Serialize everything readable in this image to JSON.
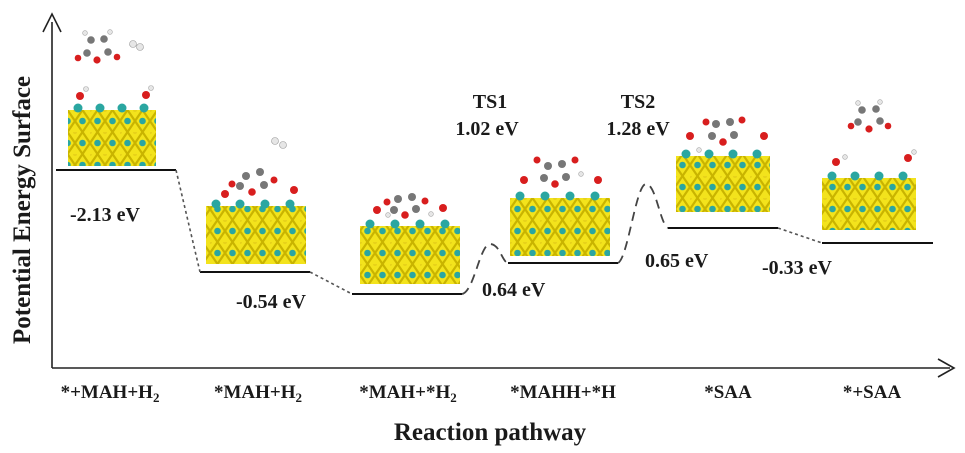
{
  "axes": {
    "ylabel": "Potential Energy Surface",
    "xlabel": "Reaction pathway"
  },
  "states": [
    {
      "label": "*+MAH+H2",
      "energy": "-2.13 eV"
    },
    {
      "label": "*MAH+H2",
      "energy": "-0.54 eV"
    },
    {
      "label": "*MAH+*H2",
      "energy": ""
    },
    {
      "label": "*MAHH+*H",
      "energy": "0.64 eV"
    },
    {
      "label": "*SAA",
      "energy": "0.65 eV"
    },
    {
      "label": "*+SAA",
      "energy": "-0.33 eV"
    }
  ],
  "transition_states": [
    {
      "name": "TS1",
      "energy": "1.02 eV"
    },
    {
      "name": "TS2",
      "energy": "1.28 eV"
    }
  ],
  "colors": {
    "sulfur": "#e8d21a",
    "metal": "#2aa6a1",
    "oxygen": "#d81e1e",
    "carbon": "#777777",
    "hydrogen": "#e6e6e6"
  }
}
